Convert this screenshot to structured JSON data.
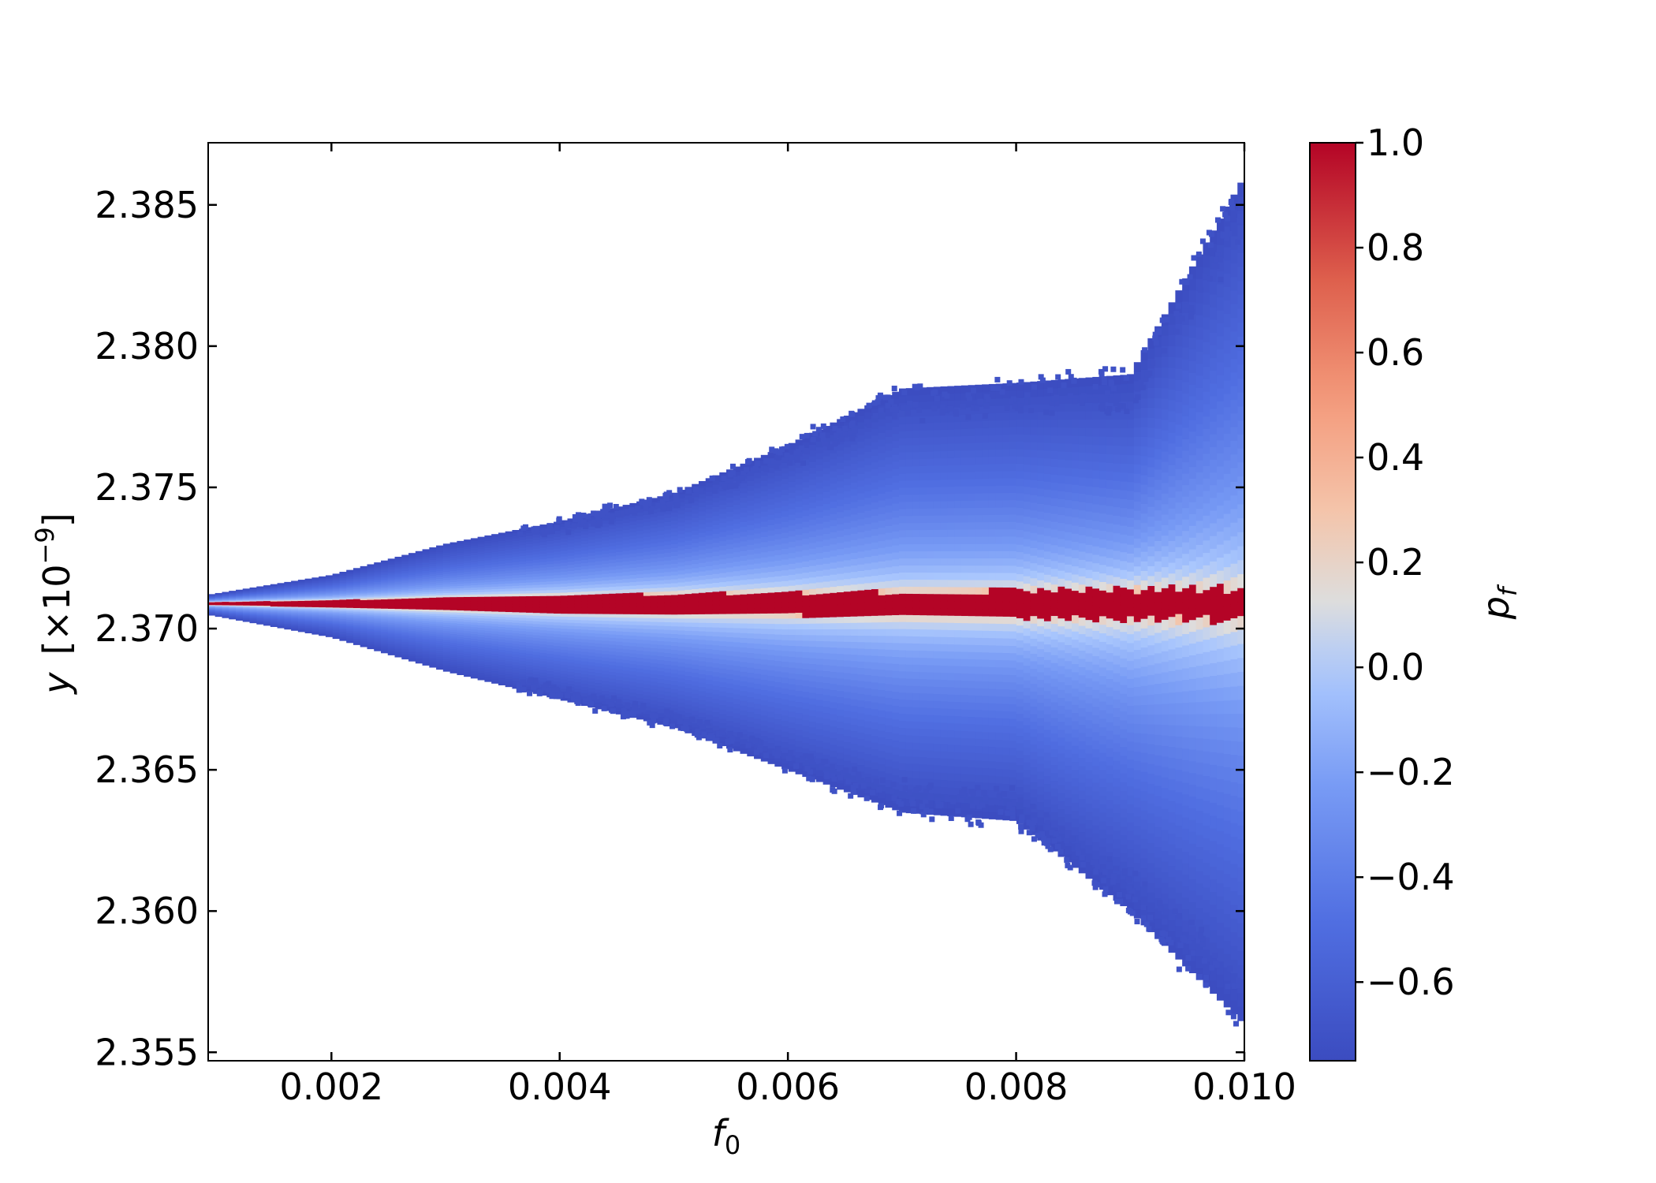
{
  "chart_data": {
    "type": "heatmap",
    "title": "",
    "xlabel_main": "f",
    "xlabel_sub": "0",
    "ylabel_main": "y",
    "ylabel_factor_prefix": "[×10",
    "ylabel_factor_exp": "−9",
    "ylabel_factor_suffix": "]",
    "xlim": [
      0.00092,
      0.01
    ],
    "ylim": [
      2.3547,
      2.3872
    ],
    "x_ticks": [
      0.002,
      0.004,
      0.006,
      0.008,
      0.01
    ],
    "x_tick_labels": [
      "0.002",
      "0.004",
      "0.006",
      "0.008",
      "0.010"
    ],
    "y_ticks": [
      2.355,
      2.36,
      2.365,
      2.37,
      2.375,
      2.38,
      2.385
    ],
    "y_tick_labels": [
      "2.355",
      "2.360",
      "2.365",
      "2.370",
      "2.375",
      "2.380",
      "2.385"
    ],
    "colorbar": {
      "label_main": "p",
      "label_sub": "f",
      "range": [
        -0.75,
        1.0
      ],
      "ticks": [
        -0.6,
        -0.4,
        -0.2,
        0.0,
        0.2,
        0.4,
        0.6,
        0.8,
        1.0
      ],
      "tick_labels": [
        "−0.6",
        "−0.4",
        "−0.2",
        "0.0",
        "0.2",
        "0.4",
        "0.6",
        "0.8",
        "1.0"
      ],
      "colormap": "coolwarm",
      "color_low": "#3b4cc0",
      "color_mid": "#dddddd",
      "color_high": "#b40426"
    },
    "envelope": {
      "center": 2.3709,
      "x": [
        0.00092,
        0.002,
        0.003,
        0.004,
        0.005,
        0.006,
        0.007,
        0.008,
        0.009,
        0.01
      ],
      "upper": [
        2.3712,
        2.3719,
        2.373,
        2.3738,
        2.3748,
        2.3765,
        2.3785,
        2.3787,
        2.379,
        2.386
      ],
      "lower": [
        2.3705,
        2.3697,
        2.3685,
        2.3675,
        2.3665,
        2.365,
        2.3635,
        2.3632,
        2.36,
        2.356
      ],
      "core_half_width": [
        5e-05,
        0.00012,
        0.00022,
        0.0003,
        0.00036,
        0.0004,
        0.00044,
        0.00048,
        0.00052,
        0.00056
      ]
    },
    "grid": false,
    "legend": "none"
  }
}
